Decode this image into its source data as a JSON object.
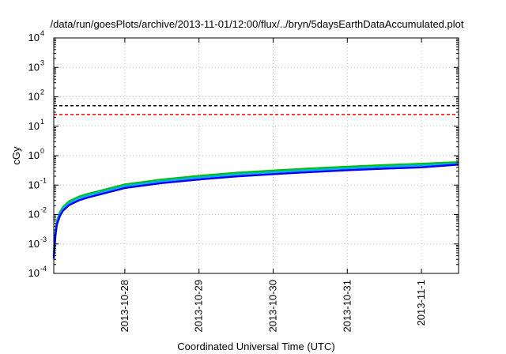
{
  "chart_data": {
    "type": "line",
    "title": "/data/run/goesPlots/archive/2013-11-01/12:00/flux/../bryn/5daysEarthDataAccumulated.plot",
    "xlabel": "Coordinated Universal Time (UTC)",
    "ylabel": "cGy",
    "x_range": [
      "2013-10-27T01:00",
      "2013-11-01T12:00"
    ],
    "x_ticks": [
      "2013-10-28",
      "2013-10-29",
      "2013-10-30",
      "2013-10-31",
      "2013-11-1"
    ],
    "y_scale": "log",
    "ylim": [
      0.0001,
      10000
    ],
    "y_ticks": [
      {
        "value": 0.0001,
        "base": "10",
        "exp": "-4"
      },
      {
        "value": 0.001,
        "base": "10",
        "exp": "-3"
      },
      {
        "value": 0.01,
        "base": "10",
        "exp": "-2"
      },
      {
        "value": 0.1,
        "base": "10",
        "exp": "-1"
      },
      {
        "value": 1,
        "base": "10",
        "exp": "0"
      },
      {
        "value": 10,
        "base": "10",
        "exp": "1"
      },
      {
        "value": 100,
        "base": "10",
        "exp": "2"
      },
      {
        "value": 1000,
        "base": "10",
        "exp": "3"
      },
      {
        "value": 10000,
        "base": "10",
        "exp": "4"
      }
    ],
    "grid": true,
    "reference_lines": [
      {
        "value": 50,
        "color": "#000000",
        "style": "dashed"
      },
      {
        "value": 25,
        "color": "#ff0000",
        "style": "dashed"
      }
    ],
    "series": [
      {
        "color": "#00c000",
        "x": [
          "2013-10-27T01:00",
          "2013-10-27T01:30",
          "2013-10-27T02:00",
          "2013-10-27T03:00",
          "2013-10-27T04:00",
          "2013-10-27T06:00",
          "2013-10-27T09:00",
          "2013-10-27T12:00",
          "2013-10-28T00:00",
          "2013-10-28T12:00",
          "2013-10-29T00:00",
          "2013-10-29T12:00",
          "2013-10-30T00:00",
          "2013-10-30T12:00",
          "2013-10-31T00:00",
          "2013-10-31T12:00",
          "2013-11-01T00:00",
          "2013-11-01T12:00"
        ],
        "values": [
          0.00045,
          0.0025,
          0.006,
          0.012,
          0.018,
          0.028,
          0.04,
          0.05,
          0.105,
          0.155,
          0.205,
          0.26,
          0.31,
          0.365,
          0.42,
          0.475,
          0.53,
          0.6
        ]
      },
      {
        "color": "#00b0e0",
        "x": [
          "2013-10-27T01:00",
          "2013-10-27T01:30",
          "2013-10-27T02:00",
          "2013-10-27T03:00",
          "2013-10-27T04:00",
          "2013-10-27T06:00",
          "2013-10-27T09:00",
          "2013-10-27T12:00",
          "2013-10-28T00:00",
          "2013-10-28T12:00",
          "2013-10-29T00:00",
          "2013-10-29T12:00",
          "2013-10-30T00:00",
          "2013-10-30T12:00",
          "2013-10-31T00:00",
          "2013-10-31T12:00",
          "2013-11-01T00:00",
          "2013-11-01T12:00"
        ],
        "values": [
          0.0004,
          0.0022,
          0.0053,
          0.0105,
          0.016,
          0.025,
          0.036,
          0.045,
          0.094,
          0.138,
          0.183,
          0.232,
          0.277,
          0.326,
          0.375,
          0.424,
          0.473,
          0.54
        ]
      },
      {
        "color": "#0000ff",
        "x": [
          "2013-10-27T01:00",
          "2013-10-27T01:30",
          "2013-10-27T02:00",
          "2013-10-27T03:00",
          "2013-10-27T04:00",
          "2013-10-27T06:00",
          "2013-10-27T09:00",
          "2013-10-27T12:00",
          "2013-10-28T00:00",
          "2013-10-28T12:00",
          "2013-10-29T00:00",
          "2013-10-29T12:00",
          "2013-10-30T00:00",
          "2013-10-30T12:00",
          "2013-10-31T00:00",
          "2013-10-31T12:00",
          "2013-11-01T00:00",
          "2013-11-01T12:00"
        ],
        "values": [
          0.00032,
          0.0018,
          0.0045,
          0.009,
          0.0135,
          0.021,
          0.03,
          0.038,
          0.08,
          0.118,
          0.156,
          0.198,
          0.236,
          0.278,
          0.32,
          0.362,
          0.404,
          0.5
        ]
      }
    ]
  }
}
